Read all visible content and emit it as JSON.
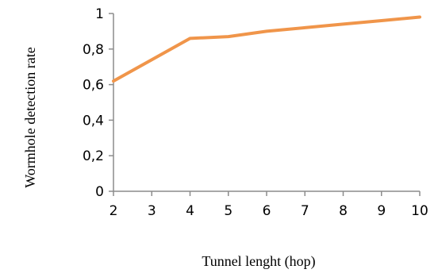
{
  "chart_data": {
    "type": "line",
    "title": "",
    "xlabel": "Tunnel lenght (hop)",
    "ylabel": "Wormhole detection rate",
    "x": [
      2,
      3,
      4,
      5,
      6,
      7,
      8,
      9,
      10
    ],
    "series": [
      {
        "values": [
          0.62,
          0.74,
          0.86,
          0.87,
          0.9,
          0.92,
          0.94,
          0.96,
          0.98
        ]
      }
    ],
    "xlim": [
      2,
      10
    ],
    "ylim": [
      0,
      1
    ],
    "xticks": [
      "2",
      "3",
      "4",
      "5",
      "6",
      "7",
      "8",
      "9",
      "10"
    ],
    "yticks": [
      "0",
      "0,2",
      "0,4",
      "0,6",
      "0,8",
      "1"
    ],
    "grid": false,
    "legend": "none",
    "colors": {
      "line": "#F0954A",
      "axis": "#8C8C8C"
    }
  }
}
